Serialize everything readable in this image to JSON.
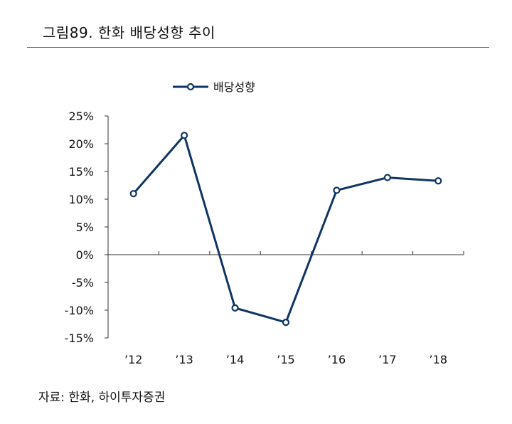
{
  "header": {
    "title": "그림89. 한화 배당성향 추이"
  },
  "chart_data": {
    "type": "line",
    "categories": [
      "12",
      "13",
      "14",
      "15",
      "16",
      "17",
      "18"
    ],
    "series": [
      {
        "name": "배당성향",
        "values": [
          11.0,
          21.5,
          -9.6,
          -12.2,
          11.6,
          13.9,
          13.3
        ],
        "color": "#0f3562"
      }
    ],
    "ylim": [
      -15,
      25
    ],
    "yticks": [
      25,
      20,
      15,
      10,
      5,
      0,
      -5,
      -10,
      -15
    ],
    "ytick_labels": [
      "25%",
      "20%",
      "15%",
      "10%",
      "5%",
      "0%",
      "-5%",
      "-10%",
      "-15%"
    ],
    "xtick_labels": [
      "’12",
      "’13",
      "’14",
      "’15",
      "’16",
      "’17",
      "’18"
    ],
    "legend_position": "top",
    "grid": false
  },
  "footer": {
    "source": "자료: 한화, 하이투자증권"
  }
}
